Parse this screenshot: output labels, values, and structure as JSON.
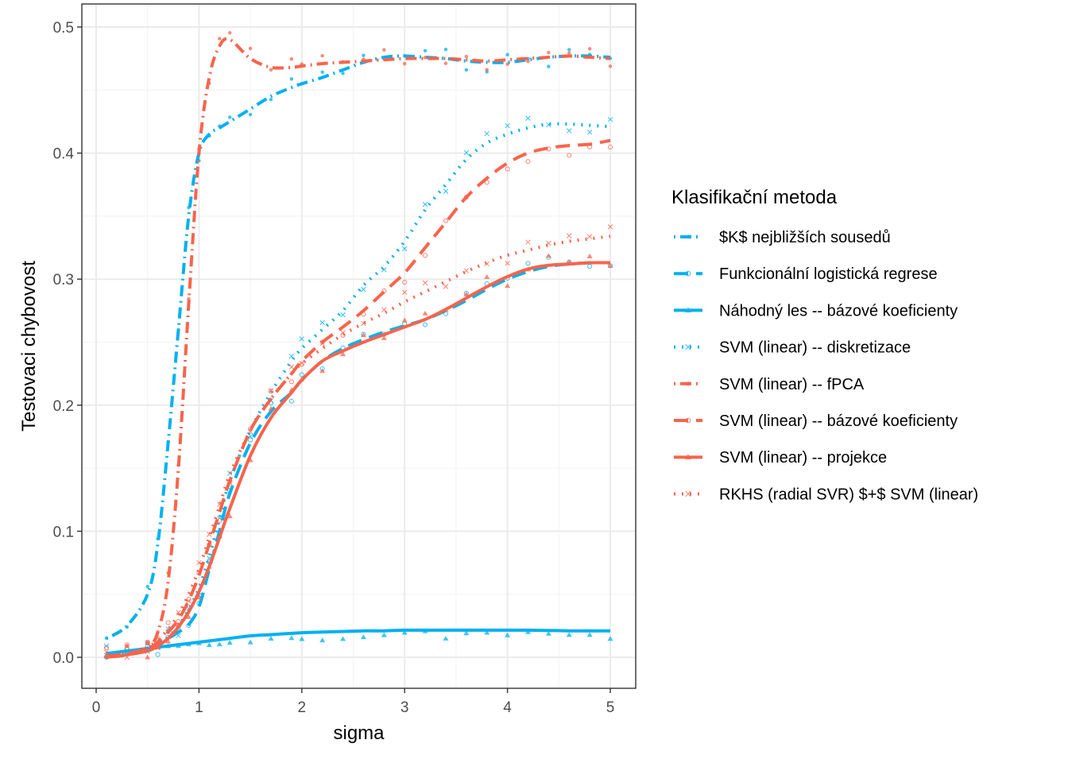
{
  "chart_data": {
    "type": "line",
    "title": "",
    "xlabel": "sigma",
    "ylabel": "Testovaci chybovost",
    "xlim": [
      -0.1,
      5.25
    ],
    "ylim": [
      -0.025,
      0.518
    ],
    "x_ticks": [
      0,
      1,
      2,
      3,
      4,
      5
    ],
    "x_tick_labels": [
      "0",
      "1",
      "2",
      "3",
      "4",
      "5"
    ],
    "y_ticks": [
      0.0,
      0.1,
      0.2,
      0.3,
      0.4,
      0.5
    ],
    "y_tick_labels": [
      "0.0",
      "0.1",
      "0.2",
      "0.3",
      "0.4",
      "0.5"
    ],
    "grid": true,
    "legend": {
      "title": "Klasifikační metoda",
      "position": "right"
    },
    "x": [
      0.1,
      0.3,
      0.5,
      0.6,
      0.7,
      0.8,
      0.9,
      1.0,
      1.1,
      1.2,
      1.3,
      1.5,
      1.7,
      1.9,
      2.0,
      2.2,
      2.4,
      2.6,
      2.8,
      3.0,
      3.2,
      3.4,
      3.6,
      3.8,
      4.0,
      4.2,
      4.4,
      4.6,
      4.8,
      5.0
    ],
    "series": [
      {
        "name": "$K$ nejbližších sousedů",
        "color": "#00B0F0",
        "linetype": "dotdash",
        "marker": "filled-circle",
        "values": [
          0.015,
          0.025,
          0.05,
          0.09,
          0.17,
          0.26,
          0.35,
          0.4,
          0.415,
          0.42,
          0.425,
          0.435,
          0.445,
          0.452,
          0.455,
          0.46,
          0.466,
          0.472,
          0.476,
          0.477,
          0.476,
          0.475,
          0.473,
          0.472,
          0.472,
          0.474,
          0.476,
          0.477,
          0.477,
          0.476
        ]
      },
      {
        "name": "Funkcionální logistická regrese",
        "color": "#00B0F0",
        "linetype": "longdash",
        "marker": "open-circle",
        "values": [
          0.001,
          0.003,
          0.006,
          0.01,
          0.015,
          0.02,
          0.026,
          0.04,
          0.07,
          0.1,
          0.13,
          0.17,
          0.195,
          0.21,
          0.22,
          0.235,
          0.245,
          0.252,
          0.258,
          0.263,
          0.268,
          0.275,
          0.283,
          0.292,
          0.3,
          0.306,
          0.31,
          0.312,
          0.313,
          0.313
        ]
      },
      {
        "name": "Náhodný les -- bázové koeficienty",
        "color": "#00B0F0",
        "linetype": "solid",
        "marker": "filled-triangle",
        "values": [
          0.003,
          0.005,
          0.007,
          0.008,
          0.009,
          0.01,
          0.011,
          0.012,
          0.013,
          0.014,
          0.015,
          0.017,
          0.018,
          0.019,
          0.0195,
          0.02,
          0.0205,
          0.021,
          0.021,
          0.0215,
          0.0215,
          0.0215,
          0.0215,
          0.0215,
          0.0215,
          0.0215,
          0.0213,
          0.021,
          0.021,
          0.021
        ]
      },
      {
        "name": "SVM (linear) -- diskretizace",
        "color": "#00B0F0",
        "linetype": "dotted",
        "marker": "cross",
        "values": [
          0.001,
          0.003,
          0.006,
          0.01,
          0.016,
          0.025,
          0.038,
          0.055,
          0.08,
          0.11,
          0.14,
          0.18,
          0.21,
          0.235,
          0.245,
          0.26,
          0.275,
          0.295,
          0.31,
          0.33,
          0.355,
          0.375,
          0.395,
          0.408,
          0.415,
          0.42,
          0.423,
          0.423,
          0.422,
          0.421
        ]
      },
      {
        "name": "SVM (linear) -- fPCA",
        "color": "#F8644C",
        "linetype": "dotdash",
        "marker": "filled-circle",
        "values": [
          0.0,
          0.002,
          0.008,
          0.02,
          0.06,
          0.15,
          0.28,
          0.4,
          0.46,
          0.485,
          0.49,
          0.475,
          0.468,
          0.468,
          0.469,
          0.471,
          0.472,
          0.473,
          0.474,
          0.475,
          0.475,
          0.475,
          0.474,
          0.473,
          0.474,
          0.475,
          0.476,
          0.477,
          0.476,
          0.475
        ]
      },
      {
        "name": "SVM (linear) -- bázové koeficienty",
        "color": "#F8644C",
        "linetype": "longdash",
        "marker": "open-circle",
        "values": [
          0.001,
          0.003,
          0.007,
          0.012,
          0.02,
          0.03,
          0.045,
          0.065,
          0.09,
          0.115,
          0.14,
          0.18,
          0.205,
          0.225,
          0.235,
          0.25,
          0.262,
          0.275,
          0.29,
          0.305,
          0.325,
          0.345,
          0.365,
          0.38,
          0.392,
          0.4,
          0.404,
          0.406,
          0.407,
          0.41
        ]
      },
      {
        "name": "SVM (linear) -- projekce",
        "color": "#F8644C",
        "linetype": "solid",
        "marker": "filled-triangle",
        "values": [
          0.0,
          0.002,
          0.005,
          0.009,
          0.015,
          0.024,
          0.036,
          0.052,
          0.072,
          0.095,
          0.118,
          0.16,
          0.19,
          0.21,
          0.22,
          0.235,
          0.243,
          0.25,
          0.256,
          0.262,
          0.268,
          0.276,
          0.285,
          0.294,
          0.302,
          0.308,
          0.311,
          0.312,
          0.313,
          0.313
        ]
      },
      {
        "name": "RKHS (radial SVR) $+$ SVM (linear)",
        "color": "#F8644C",
        "linetype": "dotted",
        "marker": "cross",
        "values": [
          0.0,
          0.003,
          0.008,
          0.014,
          0.022,
          0.034,
          0.05,
          0.07,
          0.095,
          0.12,
          0.145,
          0.18,
          0.205,
          0.225,
          0.233,
          0.245,
          0.256,
          0.265,
          0.273,
          0.282,
          0.29,
          0.298,
          0.306,
          0.313,
          0.319,
          0.323,
          0.327,
          0.33,
          0.332,
          0.334
        ]
      }
    ]
  }
}
